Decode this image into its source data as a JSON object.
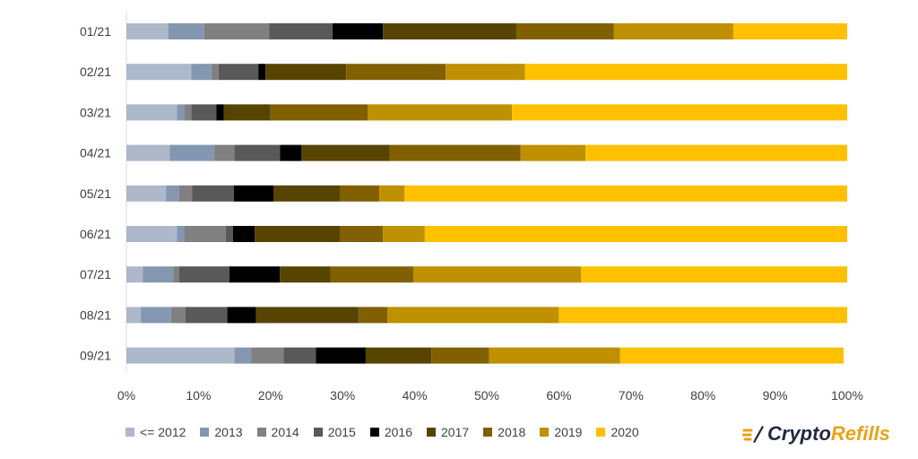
{
  "chart_data": {
    "type": "bar",
    "orientation": "horizontal",
    "stacked": true,
    "percent": true,
    "categories": [
      "01/21",
      "02/21",
      "03/21",
      "04/21",
      "05/21",
      "06/21",
      "07/21",
      "08/21",
      "09/21"
    ],
    "xlim": [
      0,
      100
    ],
    "xticks": [
      "0%",
      "10%",
      "20%",
      "30%",
      "40%",
      "50%",
      "60%",
      "70%",
      "80%",
      "90%",
      "100%"
    ],
    "grid": false,
    "legend_position": "bottom",
    "series": [
      {
        "name": "<= 2012",
        "color": "#adb9ca",
        "values": [
          5.8,
          9.0,
          7.0,
          6.0,
          5.5,
          7.0,
          2.3,
          2.0,
          15.0
        ]
      },
      {
        "name": "2013",
        "color": "#8497b0",
        "values": [
          5.0,
          2.8,
          1.0,
          6.2,
          1.8,
          1.0,
          4.2,
          4.2,
          2.3
        ]
      },
      {
        "name": "2014",
        "color": "#808080",
        "values": [
          9.0,
          1.0,
          1.0,
          2.8,
          1.8,
          5.8,
          0.8,
          2.0,
          4.5
        ]
      },
      {
        "name": "2015",
        "color": "#595959",
        "values": [
          8.8,
          5.5,
          3.5,
          6.3,
          5.8,
          1.0,
          7.0,
          5.8,
          4.5
        ]
      },
      {
        "name": "2016",
        "color": "#000000",
        "values": [
          7.0,
          1.0,
          1.0,
          3.0,
          5.5,
          3.0,
          7.0,
          4.0,
          6.9
        ]
      },
      {
        "name": "2017",
        "color": "#574400",
        "values": [
          18.5,
          11.2,
          6.5,
          12.2,
          9.2,
          11.8,
          7.0,
          14.2,
          9.1
        ]
      },
      {
        "name": "2018",
        "color": "#806000",
        "values": [
          13.5,
          13.8,
          13.5,
          18.2,
          5.5,
          6.0,
          11.5,
          4.0,
          8.0
        ]
      },
      {
        "name": "2019",
        "color": "#bf9000",
        "values": [
          16.6,
          11.0,
          20.0,
          9.0,
          3.5,
          5.8,
          23.3,
          23.8,
          18.2
        ]
      },
      {
        "name": "2020",
        "color": "#ffc000",
        "values": [
          15.8,
          44.7,
          46.5,
          36.3,
          61.4,
          58.6,
          36.9,
          40.0,
          31.0
        ]
      }
    ]
  },
  "logo": {
    "part1": "Crypto",
    "part2": "Refills",
    "primary_color": "#1f2a3c",
    "accent_color": "#e8a317"
  }
}
